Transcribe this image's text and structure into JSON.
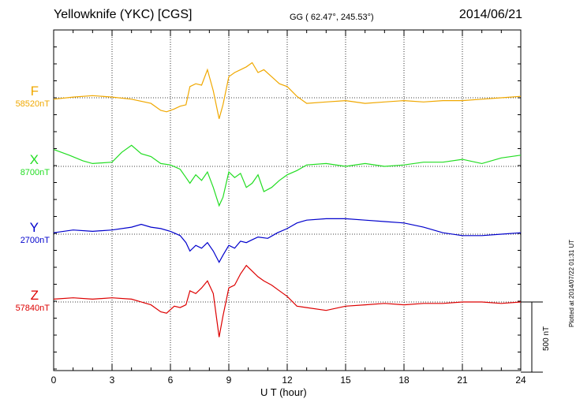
{
  "header": {
    "title": "Yellowknife (YKC)  [CGS]",
    "coords": "GG ( 62.47°, 245.53°)",
    "date": "2014/06/21"
  },
  "side_note": "Plotted at 2014/07/22 01:31  UT",
  "scale_bar_label": "500 nT",
  "chart_data": {
    "type": "line",
    "xlabel": "U T (hour)",
    "xlim": [
      0,
      24
    ],
    "x_ticks": [
      "0",
      "3",
      "6",
      "9",
      "12",
      "15",
      "18",
      "21",
      "24"
    ],
    "scale_bar_nT": 500,
    "grid": true,
    "series": [
      {
        "name": "F",
        "baseline_label": "58520nT",
        "color": "#f0a800",
        "x": [
          0,
          1,
          2,
          3,
          4,
          5,
          5.5,
          5.8,
          6.2,
          6.5,
          6.8,
          7.0,
          7.3,
          7.6,
          7.9,
          8.2,
          8.5,
          8.7,
          9.0,
          9.3,
          9.6,
          9.9,
          10.2,
          10.5,
          10.8,
          11.2,
          11.6,
          12.0,
          12.5,
          13,
          14,
          15,
          16,
          17,
          18,
          19,
          20,
          21,
          22,
          23,
          24
        ],
        "y": [
          -10,
          5,
          15,
          5,
          -10,
          -40,
          -90,
          -100,
          -80,
          -60,
          -50,
          80,
          100,
          90,
          200,
          50,
          -150,
          -50,
          150,
          180,
          200,
          220,
          250,
          180,
          200,
          150,
          100,
          80,
          10,
          -40,
          -30,
          -20,
          -40,
          -30,
          -20,
          -30,
          -20,
          -20,
          -10,
          0,
          10
        ]
      },
      {
        "name": "X",
        "baseline_label": "8700nT",
        "color": "#22dd22",
        "x": [
          0,
          0.8,
          1.5,
          2,
          3,
          3.5,
          4,
          4.5,
          5,
          5.5,
          6,
          6.5,
          6.8,
          7.0,
          7.3,
          7.6,
          7.9,
          8.2,
          8.5,
          8.7,
          9.0,
          9.3,
          9.6,
          9.9,
          10.2,
          10.5,
          10.8,
          11.2,
          11.6,
          12.0,
          12.5,
          13,
          14,
          15,
          16,
          17,
          18,
          19,
          20,
          21,
          22,
          23,
          24
        ],
        "y": [
          120,
          80,
          40,
          20,
          30,
          100,
          150,
          90,
          70,
          20,
          10,
          -20,
          -80,
          -120,
          -60,
          -100,
          -40,
          -150,
          -280,
          -220,
          -40,
          -80,
          -50,
          -150,
          -120,
          -60,
          -180,
          -150,
          -100,
          -60,
          -30,
          10,
          20,
          0,
          20,
          0,
          10,
          30,
          30,
          50,
          20,
          60,
          80
        ]
      },
      {
        "name": "Y",
        "baseline_label": "2700nT",
        "color": "#0000cc",
        "x": [
          0,
          1,
          2,
          3,
          4,
          4.5,
          5,
          5.5,
          6,
          6.5,
          6.8,
          7.0,
          7.3,
          7.6,
          7.9,
          8.2,
          8.5,
          8.7,
          9.0,
          9.3,
          9.6,
          9.9,
          10.2,
          10.5,
          11,
          11.5,
          12,
          12.5,
          13,
          14,
          15,
          16,
          17,
          18,
          19,
          20,
          21,
          22,
          23,
          24
        ],
        "y": [
          10,
          30,
          20,
          30,
          50,
          70,
          50,
          40,
          20,
          -10,
          -60,
          -120,
          -80,
          -100,
          -60,
          -120,
          -200,
          -150,
          -80,
          -100,
          -50,
          -60,
          -40,
          -20,
          -30,
          10,
          40,
          80,
          100,
          110,
          110,
          100,
          90,
          80,
          50,
          10,
          -10,
          -10,
          0,
          10
        ]
      },
      {
        "name": "Z",
        "baseline_label": "57840nT",
        "color": "#dd0000",
        "x": [
          0,
          1,
          2,
          3,
          4,
          5,
          5.5,
          5.8,
          6.2,
          6.5,
          6.8,
          7.0,
          7.3,
          7.6,
          7.9,
          8.2,
          8.5,
          8.7,
          9.0,
          9.3,
          9.6,
          9.9,
          10.2,
          10.5,
          10.8,
          11.2,
          11.6,
          12.0,
          12.5,
          13,
          14,
          15,
          16,
          17,
          18,
          19,
          20,
          21,
          22,
          23,
          24
        ],
        "y": [
          20,
          30,
          20,
          30,
          20,
          -20,
          -70,
          -80,
          -30,
          -40,
          -20,
          80,
          60,
          100,
          150,
          60,
          -250,
          -100,
          100,
          120,
          200,
          260,
          220,
          180,
          150,
          120,
          80,
          40,
          -30,
          -40,
          -60,
          -30,
          -20,
          -10,
          -20,
          -10,
          -10,
          0,
          0,
          -10,
          0
        ]
      }
    ]
  }
}
